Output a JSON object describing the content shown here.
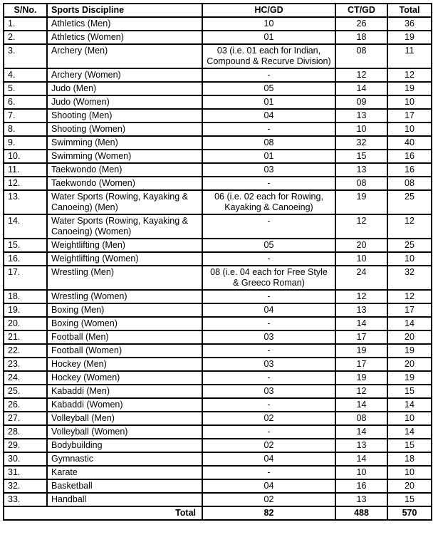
{
  "table": {
    "headers": [
      "S/No.",
      "Sports Discipline",
      "HC/GD",
      "CT/GD",
      "Total"
    ],
    "rows": [
      {
        "sno": "1.",
        "discipline": "Athletics (Men)",
        "hcgd": "10",
        "ctgd": "26",
        "total": "36"
      },
      {
        "sno": "2.",
        "discipline": "Athletics (Women)",
        "hcgd": "01",
        "ctgd": "18",
        "total": "19"
      },
      {
        "sno": "3.",
        "discipline": "Archery (Men)",
        "hcgd": "03 (i.e. 01 each for Indian, Compound & Recurve Division)",
        "ctgd": "08",
        "total": "11"
      },
      {
        "sno": "4.",
        "discipline": "Archery (Women)",
        "hcgd": "-",
        "ctgd": "12",
        "total": "12"
      },
      {
        "sno": "5.",
        "discipline": "Judo (Men)",
        "hcgd": "05",
        "ctgd": "14",
        "total": "19"
      },
      {
        "sno": "6.",
        "discipline": "Judo (Women)",
        "hcgd": "01",
        "ctgd": "09",
        "total": "10"
      },
      {
        "sno": "7.",
        "discipline": "Shooting (Men)",
        "hcgd": "04",
        "ctgd": "13",
        "total": "17"
      },
      {
        "sno": "8.",
        "discipline": "Shooting (Women)",
        "hcgd": "-",
        "ctgd": "10",
        "total": "10"
      },
      {
        "sno": "9.",
        "discipline": "Swimming (Men)",
        "hcgd": "08",
        "ctgd": "32",
        "total": "40"
      },
      {
        "sno": "10.",
        "discipline": "Swimming (Women)",
        "hcgd": "01",
        "ctgd": "15",
        "total": "16"
      },
      {
        "sno": "11.",
        "discipline": "Taekwondo (Men)",
        "hcgd": "03",
        "ctgd": "13",
        "total": "16"
      },
      {
        "sno": "12.",
        "discipline": "Taekwondo (Women)",
        "hcgd": "-",
        "ctgd": "08",
        "total": "08"
      },
      {
        "sno": "13.",
        "discipline": "Water Sports (Rowing, Kayaking & Canoeing) (Men)",
        "hcgd": "06 (i.e. 02 each for Rowing, Kayaking & Canoeing)",
        "ctgd": "19",
        "total": "25"
      },
      {
        "sno": "14.",
        "discipline": "Water Sports (Rowing, Kayaking & Canoeing) (Women)",
        "hcgd": "-",
        "ctgd": "12",
        "total": "12"
      },
      {
        "sno": "15.",
        "discipline": "Weightlifting (Men)",
        "hcgd": "05",
        "ctgd": "20",
        "total": "25"
      },
      {
        "sno": "16.",
        "discipline": "Weightlifting (Women)",
        "hcgd": "-",
        "ctgd": "10",
        "total": "10"
      },
      {
        "sno": "17.",
        "discipline": "Wrestling (Men)",
        "hcgd": "08 (i.e. 04 each for Free Style &  Greeco Roman)",
        "ctgd": "24",
        "total": "32"
      },
      {
        "sno": "18.",
        "discipline": "Wrestling (Women)",
        "hcgd": "-",
        "ctgd": "12",
        "total": "12"
      },
      {
        "sno": "19.",
        "discipline": "Boxing (Men)",
        "hcgd": "04",
        "ctgd": "13",
        "total": "17"
      },
      {
        "sno": "20.",
        "discipline": "Boxing (Women)",
        "hcgd": "-",
        "ctgd": "14",
        "total": "14"
      },
      {
        "sno": "21.",
        "discipline": "Football (Men)",
        "hcgd": "03",
        "ctgd": "17",
        "total": "20"
      },
      {
        "sno": "22.",
        "discipline": "Football (Women)",
        "hcgd": "-",
        "ctgd": "19",
        "total": "19"
      },
      {
        "sno": "23.",
        "discipline": "Hockey (Men)",
        "hcgd": "03",
        "ctgd": "17",
        "total": "20"
      },
      {
        "sno": "24.",
        "discipline": "Hockey (Women)",
        "hcgd": "-",
        "ctgd": "19",
        "total": "19"
      },
      {
        "sno": "25.",
        "discipline": "Kabaddi (Men)",
        "hcgd": "03",
        "ctgd": "12",
        "total": "15"
      },
      {
        "sno": "26.",
        "discipline": "Kabaddi (Women)",
        "hcgd": "-",
        "ctgd": "14",
        "total": "14"
      },
      {
        "sno": "27.",
        "discipline": "Volleyball (Men)",
        "hcgd": "02",
        "ctgd": "08",
        "total": "10"
      },
      {
        "sno": "28.",
        "discipline": "Volleyball (Women)",
        "hcgd": "-",
        "ctgd": "14",
        "total": "14"
      },
      {
        "sno": "29.",
        "discipline": "Bodybuilding",
        "hcgd": "02",
        "ctgd": "13",
        "total": "15"
      },
      {
        "sno": "30.",
        "discipline": "Gymnastic",
        "hcgd": "04",
        "ctgd": "14",
        "total": "18"
      },
      {
        "sno": "31.",
        "discipline": "Karate",
        "hcgd": "-",
        "ctgd": "10",
        "total": "10"
      },
      {
        "sno": "32.",
        "discipline": "Basketball",
        "hcgd": "04",
        "ctgd": "16",
        "total": "20"
      },
      {
        "sno": "33.",
        "discipline": "Handball",
        "hcgd": "02",
        "ctgd": "13",
        "total": "15"
      }
    ],
    "footer": {
      "label": "Total",
      "hcgd": "82",
      "ctgd": "488",
      "total": "570"
    }
  }
}
